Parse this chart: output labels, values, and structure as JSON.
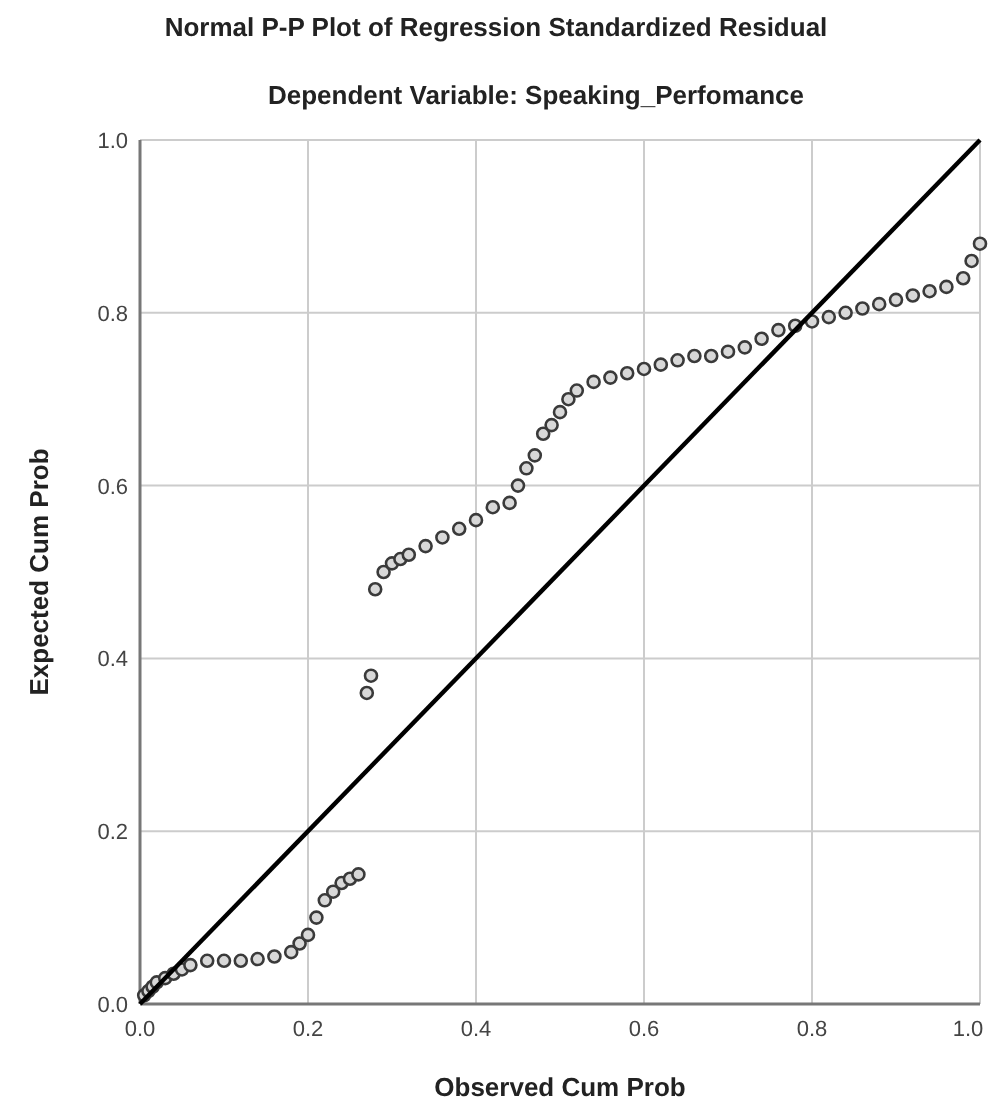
{
  "chart_data": {
    "type": "scatter",
    "title": "Normal P-P Plot of Regression Standardized Residual",
    "subtitle": "Dependent Variable: Speaking_Perfomance",
    "xlabel": "Observed Cum Prob",
    "ylabel": "Expected Cum Prob",
    "xlim": [
      0,
      1
    ],
    "ylim": [
      0,
      1
    ],
    "xticks": [
      {
        "value": 0,
        "label": "0.0"
      },
      0.2,
      0.4,
      0.6,
      0.8,
      {
        "value": 1,
        "label": "1.0"
      }
    ],
    "yticks": [
      {
        "value": 0,
        "label": "0.0"
      },
      0.2,
      0.4,
      0.6,
      0.8,
      {
        "value": 1,
        "label": "1.0"
      }
    ],
    "grid": true,
    "series": [
      {
        "marker": "circle",
        "color": "#3a3a3a",
        "x": [
          0.005,
          0.01,
          0.015,
          0.02,
          0.03,
          0.04,
          0.05,
          0.06,
          0.08,
          0.1,
          0.12,
          0.14,
          0.16,
          0.18,
          0.19,
          0.2,
          0.21,
          0.22,
          0.23,
          0.24,
          0.25,
          0.26,
          0.27,
          0.275,
          0.28,
          0.29,
          0.3,
          0.31,
          0.32,
          0.34,
          0.36,
          0.38,
          0.4,
          0.42,
          0.44,
          0.45,
          0.46,
          0.47,
          0.48,
          0.49,
          0.5,
          0.51,
          0.52,
          0.54,
          0.56,
          0.58,
          0.6,
          0.62,
          0.64,
          0.66,
          0.68,
          0.7,
          0.72,
          0.74,
          0.76,
          0.78,
          0.8,
          0.82,
          0.84,
          0.86,
          0.88,
          0.9,
          0.92,
          0.94,
          0.96,
          0.98,
          0.99,
          1.0
        ],
        "values": [
          0.01,
          0.015,
          0.02,
          0.025,
          0.03,
          0.035,
          0.04,
          0.045,
          0.05,
          0.05,
          0.05,
          0.052,
          0.055,
          0.06,
          0.07,
          0.08,
          0.1,
          0.12,
          0.13,
          0.14,
          0.145,
          0.15,
          0.36,
          0.38,
          0.48,
          0.5,
          0.51,
          0.515,
          0.52,
          0.53,
          0.54,
          0.55,
          0.56,
          0.575,
          0.58,
          0.6,
          0.62,
          0.635,
          0.66,
          0.67,
          0.685,
          0.7,
          0.71,
          0.72,
          0.725,
          0.73,
          0.735,
          0.74,
          0.745,
          0.75,
          0.75,
          0.755,
          0.76,
          0.77,
          0.78,
          0.785,
          0.79,
          0.795,
          0.8,
          0.805,
          0.81,
          0.815,
          0.82,
          0.825,
          0.83,
          0.84,
          0.86,
          0.88
        ]
      },
      {
        "type": "line",
        "color": "#000000",
        "x": [
          0,
          1
        ],
        "values": [
          0,
          1
        ]
      }
    ]
  }
}
